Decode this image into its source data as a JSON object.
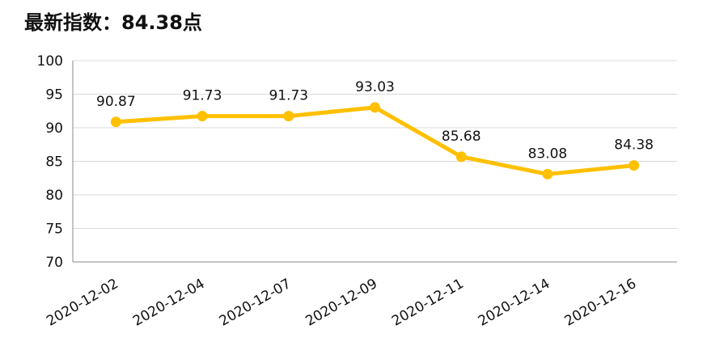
{
  "chart_data": {
    "type": "line",
    "title": "最新指数：84.38点",
    "categories": [
      "2020-12-02",
      "2020-12-04",
      "2020-12-07",
      "2020-12-09",
      "2020-12-11",
      "2020-12-14",
      "2020-12-16"
    ],
    "series": [
      {
        "name": "指数",
        "values": [
          90.87,
          91.73,
          91.73,
          93.03,
          85.68,
          83.08,
          84.38
        ],
        "color": "#FFC000"
      }
    ],
    "data_labels": [
      "90.87",
      "91.73",
      "91.73",
      "93.03",
      "85.68",
      "83.08",
      "84.38"
    ],
    "ylim": [
      70,
      100
    ],
    "yticks": [
      70,
      75,
      80,
      85,
      90,
      95,
      100
    ],
    "grid": true,
    "xlabel": "",
    "ylabel": ""
  }
}
